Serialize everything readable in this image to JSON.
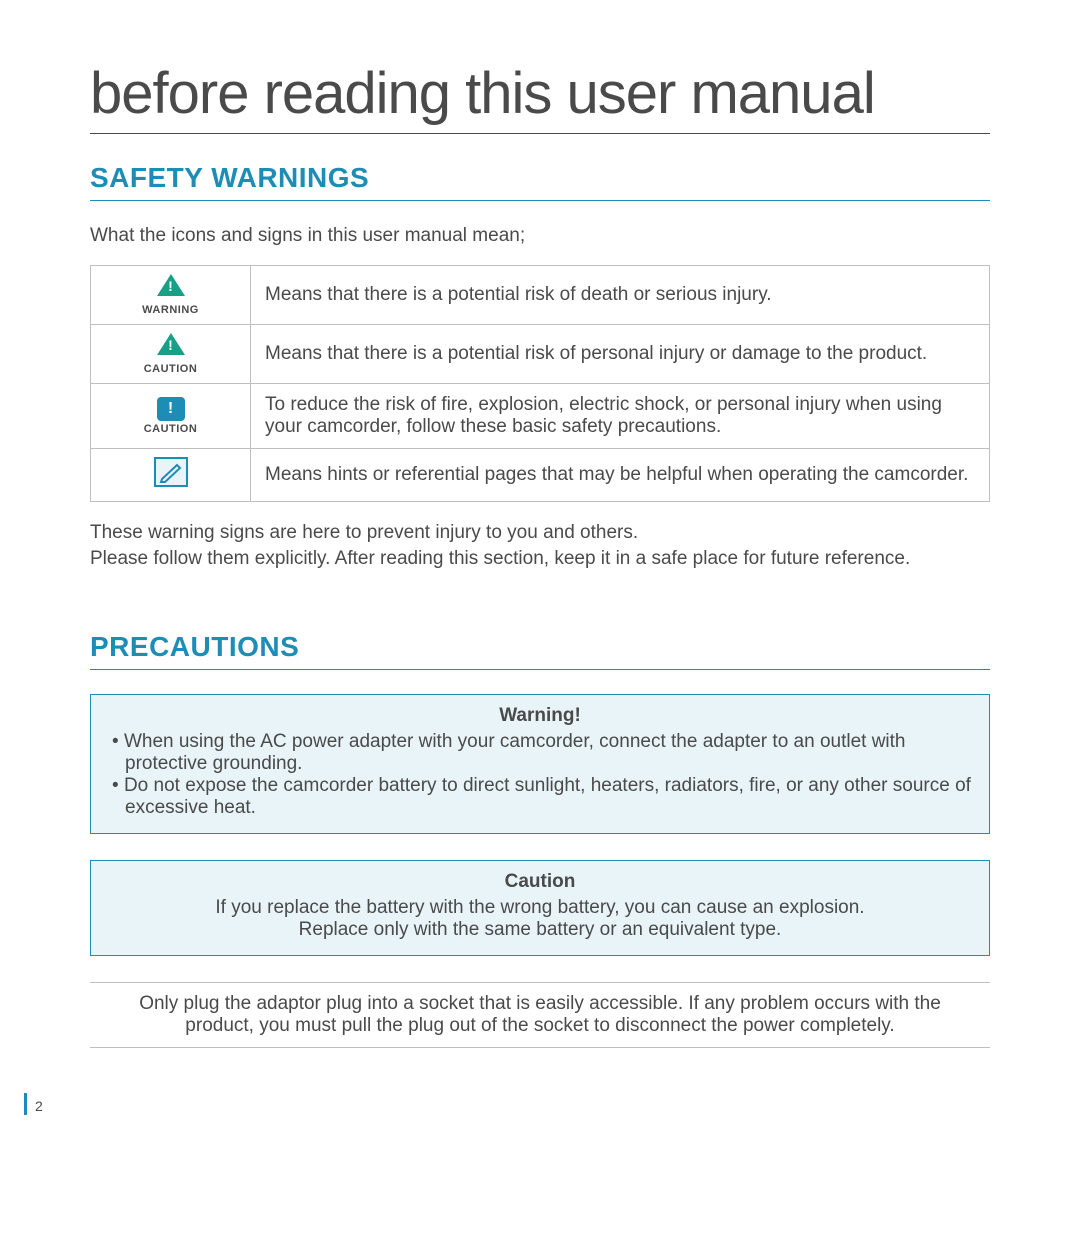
{
  "colors": {
    "accent": "#1e8db5",
    "accent_bg": "#e8f4f8",
    "text": "#4a4a4a",
    "border_gray": "#bfbfbf",
    "warn_icon": "#17a085",
    "caution_square": "#1e8db5",
    "page_bg": "#ffffff"
  },
  "typography": {
    "title_fontsize": 58,
    "title_weight": 200,
    "heading_fontsize": 28,
    "body_fontsize": 19,
    "icon_label_fontsize": 11
  },
  "doc": {
    "title": "before reading this user manual",
    "page_number": "2"
  },
  "safety": {
    "heading": "SAFETY WARNINGS",
    "intro": "What the icons and signs in this user manual mean;",
    "rows": [
      {
        "icon": "triangle",
        "icon_color": "#17a085",
        "label": "WARNING",
        "desc": "Means that there is a potential risk of death or serious injury."
      },
      {
        "icon": "triangle",
        "icon_color": "#17a085",
        "label": "CAUTION",
        "desc": "Means that there is a potential risk of personal injury or damage to the product."
      },
      {
        "icon": "square",
        "icon_color": "#1e8db5",
        "label": "CAUTION",
        "desc": "To reduce the risk of fire, explosion, electric shock, or personal injury when using your camcorder, follow these basic safety precautions."
      },
      {
        "icon": "note",
        "icon_color": "#1e8db5",
        "label": "",
        "desc": "Means hints or referential pages that may be helpful when operating the camcorder."
      }
    ],
    "footer": "These warning signs are here to prevent injury to you and others.\nPlease follow them explicitly. After reading this section, keep it in a safe place for future reference."
  },
  "precautions": {
    "heading": "PRECAUTIONS",
    "warning_box": {
      "title": "Warning!",
      "items": [
        "When using the AC power adapter with your camcorder, connect the adapter to an outlet with protective grounding.",
        "Do not expose the camcorder battery to direct sunlight, heaters, radiators, fire, or any other source of excessive heat."
      ]
    },
    "caution_box": {
      "title": "Caution",
      "line1": "If you replace the battery with the wrong battery, you can cause an explosion.",
      "line2": "Replace only with the same battery or an equivalent type."
    },
    "plain_box": "Only plug the adaptor plug into a socket that is easily accessible. If any problem occurs with the product, you must pull the plug out of the socket to disconnect the power completely."
  }
}
